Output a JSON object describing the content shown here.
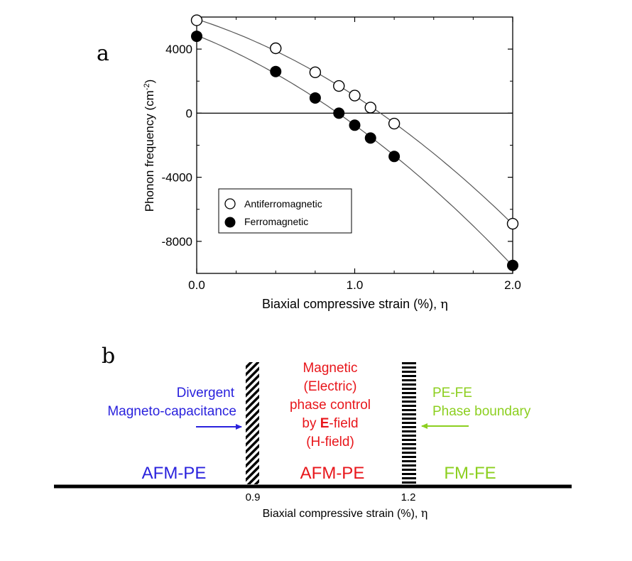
{
  "chart_data": [
    {
      "panel": "a",
      "type": "scatter",
      "xlabel_main": "Biaxial compressive strain (%),",
      "xlabel_symbol": "η",
      "ylabel_main": "Phonon frequency (cm",
      "ylabel_sup": "-2",
      "ylabel_close": ")",
      "xlim": [
        0.0,
        2.0
      ],
      "ylim": [
        -10000,
        6000
      ],
      "xticks": [
        {
          "value": 0.0,
          "label": "0.0"
        },
        {
          "value": 1.0,
          "label": "1.0"
        },
        {
          "value": 2.0,
          "label": "2.0"
        }
      ],
      "yticks": [
        {
          "value": 4000,
          "label": "4000"
        },
        {
          "value": 0,
          "label": "0"
        },
        {
          "value": -4000,
          "label": "-4000"
        },
        {
          "value": -8000,
          "label": "-8000"
        }
      ],
      "zero_line": true,
      "legend_position": "lower-left",
      "series": [
        {
          "name": "Antiferromagnetic",
          "marker": "open-circle",
          "x": [
            0.0,
            0.5,
            0.75,
            0.9,
            1.0,
            1.1,
            1.25,
            2.0
          ],
          "y": [
            5800,
            4050,
            2550,
            1700,
            1100,
            350,
            -650,
            -6900
          ]
        },
        {
          "name": "Ferromagnetic",
          "marker": "filled-circle",
          "x": [
            0.0,
            0.5,
            0.75,
            0.9,
            1.0,
            1.1,
            1.25,
            2.0
          ],
          "y": [
            4800,
            2600,
            950,
            0,
            -750,
            -1550,
            -2700,
            -9500
          ]
        }
      ]
    },
    {
      "panel": "b",
      "type": "diagram",
      "axis_label_main": "Biaxial compressive strain (%),",
      "axis_label_symbol": "η",
      "boundaries": [
        {
          "value": 0.9,
          "label": "0.9",
          "pattern": "diagonal-hatch"
        },
        {
          "value": 1.2,
          "label": "1.2",
          "pattern": "horizontal-stripes"
        }
      ],
      "regions": [
        {
          "label": "AFM-PE",
          "color": "#2a22dd"
        },
        {
          "label": "AFM-PE",
          "color": "#e8161b"
        },
        {
          "label": "FM-FE",
          "color": "#8ccf1f"
        }
      ],
      "annotations": {
        "left": {
          "lines": [
            "Divergent",
            "Magneto-capacitance"
          ],
          "color": "#2a22dd"
        },
        "middle": {
          "lines": [
            "Magnetic",
            "(Electric)",
            "phase control",
            "by ",
            "E",
            "-field",
            "(H-field)"
          ],
          "color": "#e8161b"
        },
        "right": {
          "lines": [
            "PE-FE",
            "Phase boundary"
          ],
          "color": "#8ccf1f"
        }
      }
    }
  ],
  "panel_letters": {
    "a": "a",
    "b": "b"
  },
  "colors": {
    "axis": "#000000",
    "blue": "#2a22dd",
    "red": "#e8161b",
    "green": "#8ccf1f"
  }
}
